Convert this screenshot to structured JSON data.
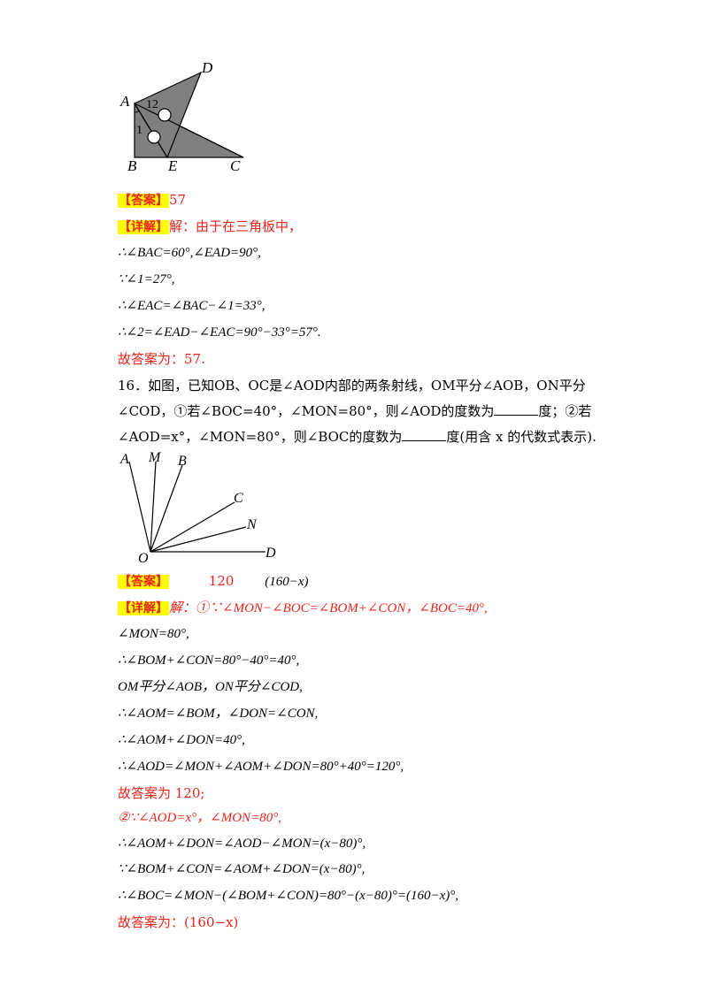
{
  "fig1": {
    "labels": {
      "A": "A",
      "B": "B",
      "C": "C",
      "D": "D",
      "E": "E",
      "n1": "1",
      "n2": "1",
      "n3": "2"
    }
  },
  "q15": {
    "answer_tag": "【答案】",
    "answer": "57",
    "detail_tag": "【详解】",
    "intro": "解：由于在三角板中，",
    "lines": [
      "∴∠BAC=60°,∠EAD=90°,",
      "∵∠1=27°,",
      "∴∠EAC=∠BAC−∠1=33°,",
      "∴∠2=∠EAD−∠EAC=90°−33°=57°."
    ],
    "final": "故答案为：57."
  },
  "q16": {
    "line1": "16．如图，已知OB、OC是∠AOD内部的两条射线，OM平分∠AOB，ON平分",
    "line2a": "∠COD，①若∠BOC=40°，∠MON=80°，则∠AOD的度数为",
    "line2b": "度；②若",
    "line3a": "∠AOD=x°，∠MON=80°，则∠BOC的度数为",
    "line3b": "度(用含 x 的代数式表示)."
  },
  "fig2": {
    "labels": {
      "A": "A",
      "M": "M",
      "B": "B",
      "C": "C",
      "N": "N",
      "D": "D",
      "O": "O"
    }
  },
  "q16_answer": {
    "answer_tag": "【答案】",
    "answer1": "120",
    "answer2": "(160−x)",
    "detail_tag": "【详解】",
    "sol_first": "解：①∵∠MON−∠BOC=∠BOM+∠CON，∠BOC=40°,",
    "sol_lines": [
      "∠MON=80°,",
      "∴∠BOM+∠CON=80°−40°=40°,",
      "OM平分∠AOB，ON平分∠COD,",
      "∴∠AOM=∠BOM，∠DON=∠CON,",
      "∴∠AOM+∠DON=40°,",
      "∴∠AOD=∠MON+∠AOM+∠DON=80°+40°=120°,",
      "故答案为 120;",
      "②∵∠AOD=x°，∠MON=80°,",
      "∴∠AOM+∠DON=∠AOD−∠MON=(x−80)°,",
      "∵∠BOM+∠CON=∠AOM+∠DON=(x−80)°,",
      "∴∠BOC=∠MON−(∠BOM+∠CON)=80°−(x−80)°=(160−x)°,",
      "故答案为：(160−x)"
    ]
  }
}
